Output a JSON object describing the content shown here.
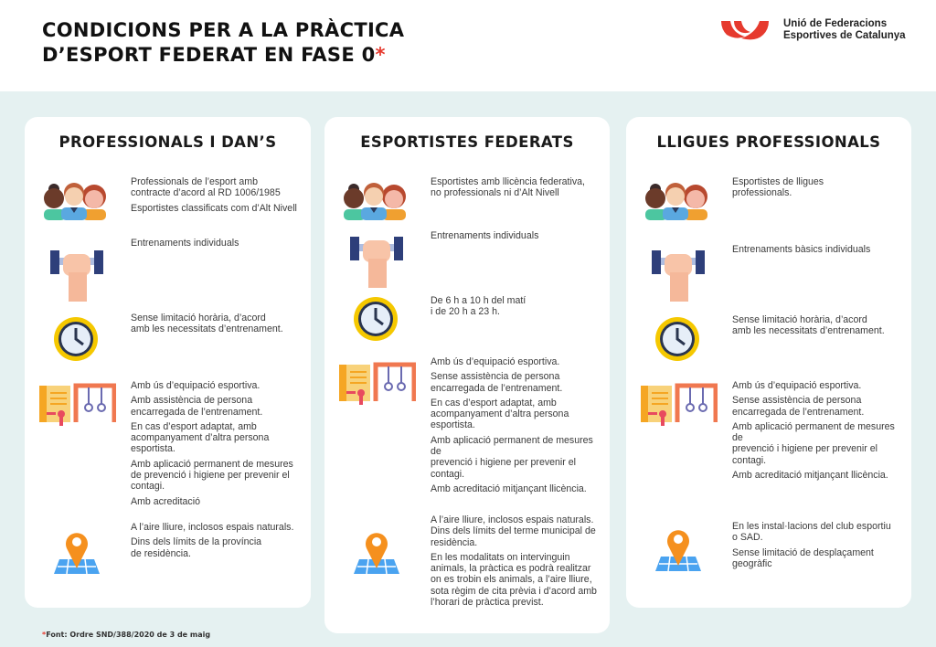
{
  "header": {
    "title_line1": "CONDICIONS PER A LA PRÀCTICA",
    "title_line2": "D’ESPORT FEDERAT EN FASE 0",
    "title_star": "*",
    "logo_line1": "Unió de Federacions",
    "logo_line2": "Esportives de Catalunya",
    "logo_color": "#e63a2e"
  },
  "cards": [
    {
      "title": "PROFESSIONALS I DAN’S",
      "rows": [
        {
          "icon": "people-icon",
          "texts": [
            "Professionals de l’esport amb\ncontracte d’acord al RD 1006/1985",
            "Esportistes classificats com d’Alt Nivell"
          ]
        },
        {
          "icon": "dumbbell-hand-icon",
          "texts": [
            "Entrenaments individuals"
          ]
        },
        {
          "icon": "clock-icon",
          "texts": [
            "Sense limitació horària, d’acord\namb les necessitats d’entrenament."
          ]
        },
        {
          "icon": "equipment-icon",
          "texts": [
            "Amb ús d’equipació esportiva.",
            "Amb assistència de persona\nencarregada de l’entrenament.",
            "En cas d’esport adaptat, amb\nacompanyament d’altra persona\nesportista.",
            "Amb aplicació permanent de mesures\nde prevenció i higiene per prevenir el\ncontagi.",
            "Amb acreditació"
          ]
        },
        {
          "icon": "map-pin-icon",
          "texts": [
            "A l’aire lliure, inclosos espais naturals.",
            "Dins dels límits de la província\nde residència."
          ]
        }
      ]
    },
    {
      "title": "ESPORTISTES FEDERATS",
      "rows": [
        {
          "icon": "people-icon",
          "texts": [
            "Esportistes amb llicència federativa,\nno professionals ni d’Alt Nivell"
          ]
        },
        {
          "icon": "dumbbell-hand-icon",
          "texts": [
            "Entrenaments individuals"
          ]
        },
        {
          "icon": "clock-icon",
          "texts": [
            "De 6 h a 10 h del matí\ni de  20 h a 23 h."
          ]
        },
        {
          "icon": "equipment-icon",
          "texts": [
            "Amb ús d’equipació esportiva.",
            "Sense assistència de persona\nencarregada de l’entrenament.",
            "En cas d’esport adaptat, amb\nacompanyament d’altra persona\nesportista.",
            "Amb aplicació permanent de mesures\nde\nprevenció i higiene per prevenir el\ncontagi.",
            "Amb acreditació mitjançant llicència."
          ]
        },
        {
          "icon": "map-pin-icon",
          "texts": [
            "A l’aire lliure, inclosos espais naturals.\nDins dels límits del terme municipal de\nresidència.",
            "En les modalitats on intervinguin\nanimals, la pràctica es podrà realitzar\non es trobin els animals, a l’aire lliure,\nsota règim de cita prèvia i d’acord amb\nl’horari de pràctica previst."
          ]
        }
      ]
    },
    {
      "title": "LLIGUES PROFESSIONALS",
      "rows": [
        {
          "icon": "people-icon",
          "texts": [
            "Esportistes de lligues\nprofessionals."
          ]
        },
        {
          "icon": "dumbbell-hand-icon",
          "texts": [
            "Entrenaments bàsics individuals"
          ]
        },
        {
          "icon": "clock-icon",
          "texts": [
            "Sense limitació horària, d’acord\namb les necessitats d’entrenament."
          ]
        },
        {
          "icon": "equipment-icon",
          "texts": [
            "Amb ús d’equipació esportiva.",
            "Sense assistència de persona\nencarregada de l’entrenament.",
            "Amb aplicació permanent de mesures\nde\nprevenció i higiene per prevenir el\ncontagi.",
            "Amb acreditació mitjançant llicència."
          ]
        },
        {
          "icon": "map-pin-icon",
          "texts": [
            "En les instal·lacions del club esportiu\no SAD.",
            "Sense limitació de desplaçament\ngeogràfic"
          ]
        }
      ]
    }
  ],
  "footer": {
    "star": "*",
    "text": "Font: Ordre SND/388/2020 de 3 de maig"
  }
}
